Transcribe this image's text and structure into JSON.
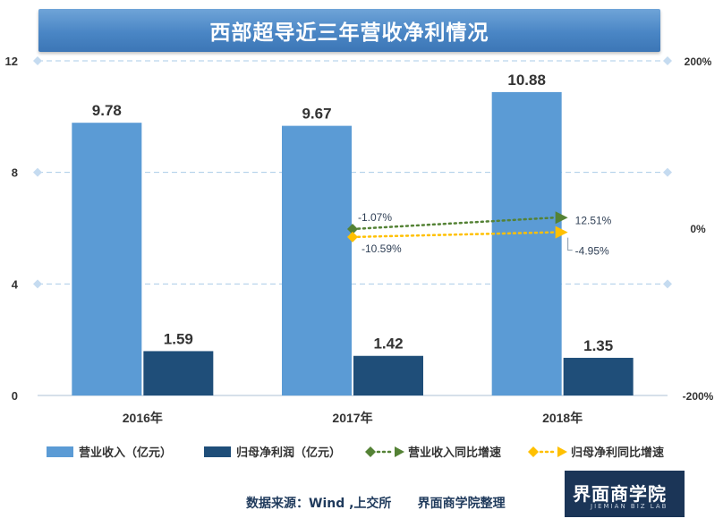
{
  "title": "西部超导近三年营收净利情况",
  "source": "数据来源：Wind ,上交所      界面商学院整理",
  "logo": {
    "main": "界面商学院",
    "sub": "JIEMIAN BIZ LAB"
  },
  "colors": {
    "revenue": "#5b9bd5",
    "profit": "#1f4e79",
    "revenue_growth": "#548235",
    "profit_growth": "#ffc000",
    "title_bg": "#4a86c5"
  },
  "chart_data": {
    "type": "bar",
    "categories": [
      "2016年",
      "2017年",
      "2018年"
    ],
    "series": [
      {
        "name": "营业收入（亿元）",
        "type": "bar",
        "axis": "left",
        "values": [
          9.78,
          9.67,
          10.88
        ],
        "labels": [
          "9.78",
          "9.67",
          "10.88"
        ]
      },
      {
        "name": "归母净利润（亿元）",
        "type": "bar",
        "axis": "left",
        "values": [
          1.59,
          1.42,
          1.35
        ],
        "labels": [
          "1.59",
          "1.42",
          "1.35"
        ]
      },
      {
        "name": "营业收入同比增速",
        "type": "line",
        "axis": "right",
        "values": [
          null,
          -1.07,
          12.51
        ],
        "labels": [
          "",
          "-1.07%",
          "12.51%"
        ]
      },
      {
        "name": "归母净利同比增速",
        "type": "line",
        "axis": "right",
        "values": [
          null,
          -10.59,
          -4.95
        ],
        "labels": [
          "",
          "-10.59%",
          "-4.95%"
        ]
      }
    ],
    "left_axis": {
      "ylim": [
        0,
        12
      ],
      "ticks": [
        "0",
        "4",
        "8",
        "12"
      ]
    },
    "right_axis": {
      "ylim": [
        -200,
        200
      ],
      "ticks": [
        "-200%",
        "0%",
        "200%"
      ]
    },
    "grid": true,
    "legend": "bottom"
  }
}
